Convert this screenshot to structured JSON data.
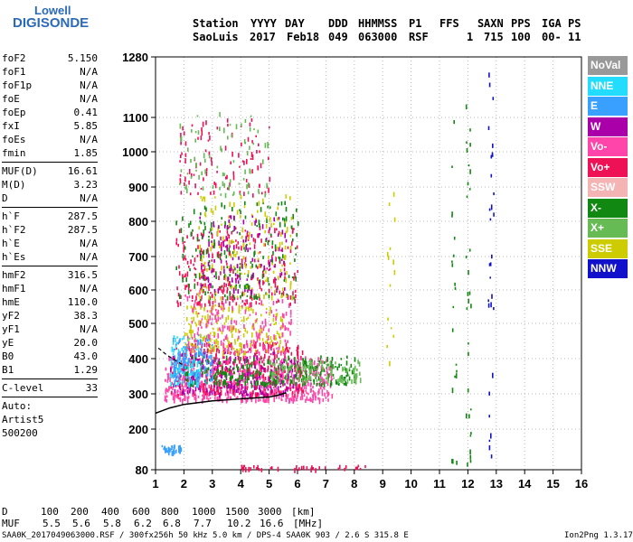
{
  "logo": {
    "line1": "Lowell",
    "line2": "DIGISONDE"
  },
  "header": {
    "labels": [
      "Station",
      "YYYY",
      "DAY",
      "DDD",
      "HHMMSS",
      "P1",
      "FFS",
      "S",
      "AXN",
      "PPS",
      "IGA",
      "PS"
    ],
    "values": [
      "SaoLuis",
      "2017",
      "Feb18",
      "049",
      "063000",
      "RSF",
      "1",
      "715",
      "100",
      "00-",
      "11"
    ]
  },
  "params": [
    [
      {
        "k": "foF2",
        "v": "5.150"
      },
      {
        "k": "foF1",
        "v": "N/A"
      },
      {
        "k": "foF1p",
        "v": "N/A"
      },
      {
        "k": "foE",
        "v": "N/A"
      },
      {
        "k": "foEp",
        "v": "0.41"
      },
      {
        "k": "fxI",
        "v": "5.85"
      },
      {
        "k": "foEs",
        "v": "N/A"
      },
      {
        "k": "fmin",
        "v": "1.85"
      }
    ],
    [
      {
        "k": "MUF(D)",
        "v": "16.61"
      },
      {
        "k": "M(D)",
        "v": "3.23"
      },
      {
        "k": "D",
        "v": "N/A"
      }
    ],
    [
      {
        "k": "h`F",
        "v": "287.5"
      },
      {
        "k": "h`F2",
        "v": "287.5"
      },
      {
        "k": "h`E",
        "v": "N/A"
      },
      {
        "k": "h`Es",
        "v": "N/A"
      }
    ],
    [
      {
        "k": "hmF2",
        "v": "316.5"
      },
      {
        "k": "hmF1",
        "v": "N/A"
      },
      {
        "k": "hmE",
        "v": "110.0"
      },
      {
        "k": "yF2",
        "v": "38.3"
      },
      {
        "k": "yF1",
        "v": "N/A"
      },
      {
        "k": "yE",
        "v": "20.0"
      },
      {
        "k": "B0",
        "v": "43.0"
      },
      {
        "k": "B1",
        "v": "1.29"
      }
    ],
    [
      {
        "k": "C-level",
        "v": "33"
      }
    ]
  ],
  "auto": [
    "Auto:",
    "Artist5",
    "500200"
  ],
  "legend": [
    {
      "label": "NoVal",
      "color": "#999999"
    },
    {
      "label": "NNE",
      "color": "#22ddff"
    },
    {
      "label": "E",
      "color": "#3aa0ff"
    },
    {
      "label": "W",
      "color": "#aa00aa"
    },
    {
      "label": "Vo-",
      "color": "#ff44aa"
    },
    {
      "label": "Vo+",
      "color": "#ee1155"
    },
    {
      "label": "SSW",
      "color": "#f4b4b4"
    },
    {
      "label": "X-",
      "color": "#118811"
    },
    {
      "label": "X+",
      "color": "#66bb55"
    },
    {
      "label": "SSE",
      "color": "#cccc00"
    },
    {
      "label": "NNW",
      "color": "#1111cc"
    }
  ],
  "muf_table": {
    "d_label": "D",
    "d_values": [
      "100",
      "200",
      "400",
      "600",
      "800",
      "1000",
      "1500",
      "3000",
      "[km]"
    ],
    "muf_label": "MUF",
    "muf_values": [
      "5.5",
      "5.6",
      "5.8",
      "6.2",
      "6.8",
      "7.7",
      "10.2",
      "16.6",
      "[MHz]"
    ]
  },
  "footer": {
    "left": "SAA0K_2017049063000.RSF / 300fx256h 50 kHz 5.0 km / DPS-4 SAA0K 903 / 2.6 S 315.8 E",
    "right": "Ion2Png 1.3.17"
  },
  "chart_data": {
    "type": "scatter",
    "title": "",
    "xlabel": "",
    "ylabel": "",
    "xlim": [
      1,
      16
    ],
    "ylim": [
      80,
      1280
    ],
    "y_scale": "non-linear (ionogram height scale)",
    "xticks": [
      1,
      2,
      3,
      4,
      5,
      6,
      7,
      8,
      9,
      10,
      11,
      12,
      13,
      14,
      15,
      16
    ],
    "yticks": [
      80,
      200,
      300,
      400,
      500,
      600,
      700,
      800,
      900,
      1000,
      1100,
      1280
    ],
    "grid": true,
    "legend_position": "right",
    "fitted_curve": [
      [
        1.0,
        245
      ],
      [
        1.5,
        260
      ],
      [
        2.0,
        270
      ],
      [
        3.0,
        280
      ],
      [
        4.0,
        286
      ],
      [
        5.0,
        291
      ],
      [
        5.3,
        296
      ],
      [
        5.6,
        303
      ]
    ],
    "dashed_curve": [
      [
        1.1,
        430
      ],
      [
        1.4,
        410
      ],
      [
        1.7,
        395
      ],
      [
        2.0,
        380
      ]
    ],
    "clusters": [
      {
        "name": "F-layer O trace",
        "fmin": 1.3,
        "fmax": 7.2,
        "hmin": 285,
        "hmax": 410,
        "color": "#ff44aa",
        "density": 700
      },
      {
        "name": "F-layer mixed",
        "fmin": 1.5,
        "fmax": 6.2,
        "hmin": 300,
        "hmax": 450,
        "color": "#ee1155",
        "density": 300
      },
      {
        "name": "F-layer W",
        "fmin": 1.5,
        "fmax": 6.0,
        "hmin": 300,
        "hmax": 420,
        "color": "#aa00aa",
        "density": 220
      },
      {
        "name": "F-layer X",
        "fmin": 2.0,
        "fmax": 8.0,
        "hmin": 330,
        "hmax": 410,
        "color": "#118811",
        "density": 260
      },
      {
        "name": "F-layer X+",
        "fmin": 5.0,
        "fmax": 8.2,
        "hmin": 340,
        "hmax": 400,
        "color": "#66bb55",
        "density": 120
      },
      {
        "name": "E-low NNE",
        "fmin": 1.5,
        "fmax": 2.6,
        "hmin": 330,
        "hmax": 470,
        "color": "#22ddff",
        "density": 100
      },
      {
        "name": "E-low E",
        "fmin": 1.6,
        "fmax": 3.0,
        "hmin": 340,
        "hmax": 470,
        "color": "#3aa0ff",
        "density": 100
      },
      {
        "name": "multi-hop SSE",
        "fmin": 2.0,
        "fmax": 5.5,
        "hmin": 420,
        "hmax": 560,
        "color": "#cccc00",
        "density": 200
      },
      {
        "name": "multi-hop mix",
        "fmin": 2.0,
        "fmax": 5.8,
        "hmin": 420,
        "hmax": 600,
        "color": "#ff44aa",
        "density": 200
      },
      {
        "name": "2F trace",
        "fmin": 1.7,
        "fmax": 6.0,
        "hmin": 560,
        "hmax": 790,
        "color": "#ee1155",
        "density": 260
      },
      {
        "name": "2F X",
        "fmin": 1.7,
        "fmax": 6.0,
        "hmin": 580,
        "hmax": 860,
        "color": "#118811",
        "density": 180
      },
      {
        "name": "2F SSE",
        "fmin": 2.5,
        "fmax": 5.8,
        "hmin": 580,
        "hmax": 880,
        "color": "#cccc00",
        "density": 150
      },
      {
        "name": "2F W",
        "fmin": 2.5,
        "fmax": 5.6,
        "hmin": 600,
        "hmax": 820,
        "color": "#aa00aa",
        "density": 120
      },
      {
        "name": "3F trace",
        "fmin": 1.8,
        "fmax": 5.0,
        "hmin": 880,
        "hmax": 1100,
        "color": "#ee1155",
        "density": 100
      },
      {
        "name": "3F X",
        "fmin": 1.8,
        "fmax": 5.0,
        "hmin": 880,
        "hmax": 1120,
        "color": "#66bb55",
        "density": 80
      },
      {
        "name": "low E",
        "fmin": 1.2,
        "fmax": 1.9,
        "hmin": 135,
        "hmax": 155,
        "color": "#3aa0ff",
        "density": 40
      },
      {
        "name": "low E2",
        "fmin": 4.0,
        "fmax": 8.5,
        "hmin": 85,
        "hmax": 95,
        "color": "#ee1155",
        "density": 40
      },
      {
        "name": "sparse 9MHz",
        "fmin": 9.1,
        "fmax": 9.4,
        "hmin": 380,
        "hmax": 900,
        "color": "#cccc00",
        "density": 14
      },
      {
        "name": "sparse 11.5MHz",
        "fmin": 11.4,
        "fmax": 11.6,
        "hmin": 100,
        "hmax": 1120,
        "color": "#118811",
        "density": 20
      },
      {
        "name": "sparse 12MHz",
        "fmin": 11.9,
        "fmax": 12.1,
        "hmin": 100,
        "hmax": 1250,
        "color": "#118811",
        "density": 30
      },
      {
        "name": "sparse 12.8MHz",
        "fmin": 12.7,
        "fmax": 12.9,
        "hmin": 100,
        "hmax": 1250,
        "color": "#1111cc",
        "density": 30
      }
    ]
  }
}
